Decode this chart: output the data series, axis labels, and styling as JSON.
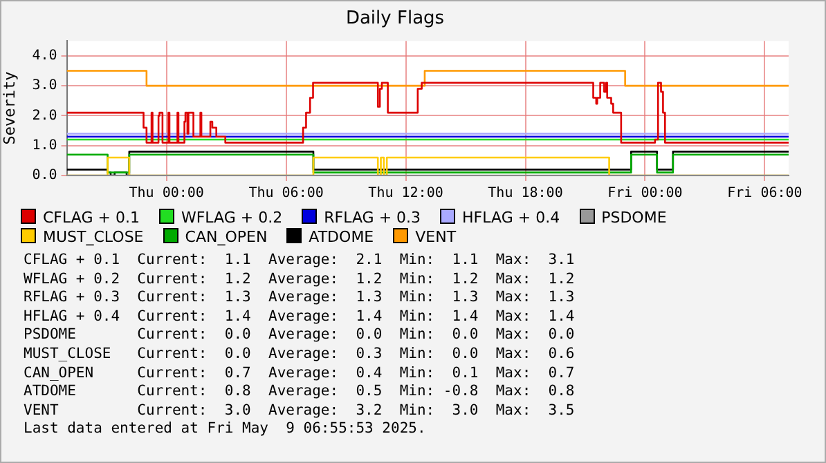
{
  "chart_data": {
    "type": "step",
    "title": "Daily Flags",
    "ylabel": "Severity",
    "xlim": [
      "2025-05-07T19:00",
      "2025-05-09T07:12"
    ],
    "xticks": [
      {
        "value": "2025-05-08T00:00",
        "label": "Thu 00:00"
      },
      {
        "value": "2025-05-08T06:00",
        "label": "Thu 06:00"
      },
      {
        "value": "2025-05-08T12:00",
        "label": "Thu 12:00"
      },
      {
        "value": "2025-05-08T18:00",
        "label": "Thu 18:00"
      },
      {
        "value": "2025-05-09T00:00",
        "label": "Fri 00:00"
      },
      {
        "value": "2025-05-09T06:00",
        "label": "Fri 06:00"
      }
    ],
    "ylim": [
      0,
      4.5
    ],
    "yticks": [
      {
        "value": 0,
        "label": "0.0"
      },
      {
        "value": 1,
        "label": "1.0"
      },
      {
        "value": 2,
        "label": "2.0"
      },
      {
        "value": 3,
        "label": "3.0"
      },
      {
        "value": 4,
        "label": "4.0"
      }
    ],
    "grid": true,
    "legend": "bottom",
    "series": [
      {
        "name": "CFLAG + 0.1",
        "color": "#dd0000",
        "x": [
          "2025-05-07T19:00",
          "2025-05-07T22:51",
          "2025-05-07T23:00",
          "2025-05-07T23:06",
          "2025-05-07T23:15",
          "2025-05-07T23:18",
          "2025-05-07T23:27",
          "2025-05-07T23:36",
          "2025-05-07T23:39",
          "2025-05-07T23:48",
          "2025-05-07T23:54",
          "2025-05-08T00:06",
          "2025-05-08T00:09",
          "2025-05-08T00:18",
          "2025-05-08T00:33",
          "2025-05-08T00:36",
          "2025-05-08T00:42",
          "2025-05-08T00:54",
          "2025-05-08T00:57",
          "2025-05-08T01:03",
          "2025-05-08T01:06",
          "2025-05-08T01:12",
          "2025-05-08T01:21",
          "2025-05-08T01:27",
          "2025-05-08T01:42",
          "2025-05-08T01:45",
          "2025-05-08T01:51",
          "2025-05-08T02:12",
          "2025-05-08T02:18",
          "2025-05-08T02:30",
          "2025-05-08T02:36",
          "2025-05-08T02:57",
          "2025-05-08T06:51",
          "2025-05-08T07:00",
          "2025-05-08T07:12",
          "2025-05-08T07:21",
          "2025-05-08T10:36",
          "2025-05-08T10:42",
          "2025-05-08T10:48",
          "2025-05-08T11:06",
          "2025-05-08T12:36",
          "2025-05-08T12:48",
          "2025-05-08T21:24",
          "2025-05-08T21:33",
          "2025-05-08T21:36",
          "2025-05-08T21:45",
          "2025-05-08T21:57",
          "2025-05-08T22:03",
          "2025-05-08T22:06",
          "2025-05-08T22:18",
          "2025-05-08T22:24",
          "2025-05-08T22:48",
          "2025-05-09T00:30",
          "2025-05-09T00:39",
          "2025-05-09T00:48",
          "2025-05-09T00:54",
          "2025-05-09T01:00",
          "2025-05-09T07:12"
        ],
        "values": [
          2.1,
          1.6,
          1.1,
          1.1,
          2.1,
          1.1,
          1.1,
          2.0,
          2.1,
          1.1,
          1.1,
          2.1,
          1.1,
          1.1,
          2.1,
          1.1,
          1.1,
          1.8,
          2.1,
          1.4,
          2.1,
          2.1,
          1.3,
          1.3,
          2.1,
          1.3,
          1.3,
          1.8,
          1.6,
          1.3,
          1.3,
          1.1,
          1.6,
          2.1,
          2.6,
          3.1,
          2.3,
          2.9,
          3.1,
          2.1,
          2.9,
          3.1,
          2.6,
          2.4,
          2.6,
          3.1,
          2.8,
          3.1,
          2.6,
          2.4,
          2.1,
          1.1,
          1.2,
          3.1,
          2.8,
          2.1,
          1.1,
          1.1
        ]
      },
      {
        "name": "WFLAG + 0.2",
        "color": "#22dd22",
        "x": [
          "2025-05-07T19:00",
          "2025-05-09T07:12"
        ],
        "values": [
          1.2,
          1.2
        ]
      },
      {
        "name": "RFLAG + 0.3",
        "color": "#0000dd",
        "x": [
          "2025-05-07T19:00",
          "2025-05-09T07:12"
        ],
        "values": [
          1.3,
          1.3
        ]
      },
      {
        "name": "HFLAG + 0.4",
        "color": "#aaaaff",
        "x": [
          "2025-05-07T19:00",
          "2025-05-09T07:12"
        ],
        "values": [
          1.4,
          1.4
        ]
      },
      {
        "name": "PSDOME",
        "color": "#999999",
        "x": [
          "2025-05-07T19:00",
          "2025-05-09T07:12"
        ],
        "values": [
          0,
          0
        ]
      },
      {
        "name": "MUST_CLOSE",
        "color": "#ffcc00",
        "x": [
          "2025-05-07T19:00",
          "2025-05-07T21:03",
          "2025-05-07T22:08",
          "2025-05-08T07:22",
          "2025-05-08T10:36",
          "2025-05-08T10:45",
          "2025-05-08T10:54",
          "2025-05-08T11:03",
          "2025-05-08T22:12",
          "2025-05-09T07:12"
        ],
        "values": [
          0,
          0.6,
          0,
          0.6,
          0,
          0.6,
          0,
          0.6,
          0,
          0
        ]
      },
      {
        "name": "CAN_OPEN",
        "color": "#00aa00",
        "x": [
          "2025-05-07T19:00",
          "2025-05-07T21:03",
          "2025-05-07T22:08",
          "2025-05-08T07:22",
          "2025-05-08T23:18",
          "2025-05-09T00:36",
          "2025-05-09T01:24",
          "2025-05-09T07:12"
        ],
        "values": [
          0.7,
          0.1,
          0.7,
          0.1,
          0.7,
          0.1,
          0.7,
          0.7
        ]
      },
      {
        "name": "ATDOME",
        "color": "#000000",
        "x": [
          "2025-05-07T19:00",
          "2025-05-07T21:03",
          "2025-05-07T21:12",
          "2025-05-07T21:24",
          "2025-05-07T22:00",
          "2025-05-07T22:08",
          "2025-05-08T07:22",
          "2025-05-08T23:18",
          "2025-05-09T00:36",
          "2025-05-09T01:24",
          "2025-05-09T07:12"
        ],
        "values": [
          0.2,
          0.1,
          0,
          0.1,
          0,
          0.8,
          0.2,
          0.8,
          0.2,
          0.8,
          0.8
        ]
      },
      {
        "name": "VENT",
        "color": "#ff9900",
        "x": [
          "2025-05-07T19:00",
          "2025-05-07T23:00",
          "2025-05-08T12:57",
          "2025-05-08T23:00",
          "2025-05-09T07:12"
        ],
        "values": [
          3.5,
          3.0,
          3.5,
          3.0,
          3.0
        ]
      }
    ],
    "annotations": [
      "CFLAG + 0.1  Current:  1.1  Average:  2.1  Min:  1.1  Max:  3.1",
      "WFLAG + 0.2  Current:  1.2  Average:  1.2  Min:  1.2  Max:  1.2",
      "RFLAG + 0.3  Current:  1.3  Average:  1.3  Min:  1.3  Max:  1.3",
      "HFLAG + 0.4  Current:  1.4  Average:  1.4  Min:  1.4  Max:  1.4",
      "PSDOME       Current:  0.0  Average:  0.0  Min:  0.0  Max:  0.0",
      "MUST_CLOSE   Current:  0.0  Average:  0.3  Min:  0.0  Max:  0.6",
      "CAN_OPEN     Current:  0.7  Average:  0.4  Min:  0.1  Max:  0.7",
      "ATDOME       Current:  0.8  Average:  0.5  Min: -0.8  Max:  0.8",
      "VENT         Current:  3.0  Average:  3.2  Min:  3.0  Max:  3.5",
      "Last data entered at Fri May  9 06:55:53 2025."
    ]
  }
}
